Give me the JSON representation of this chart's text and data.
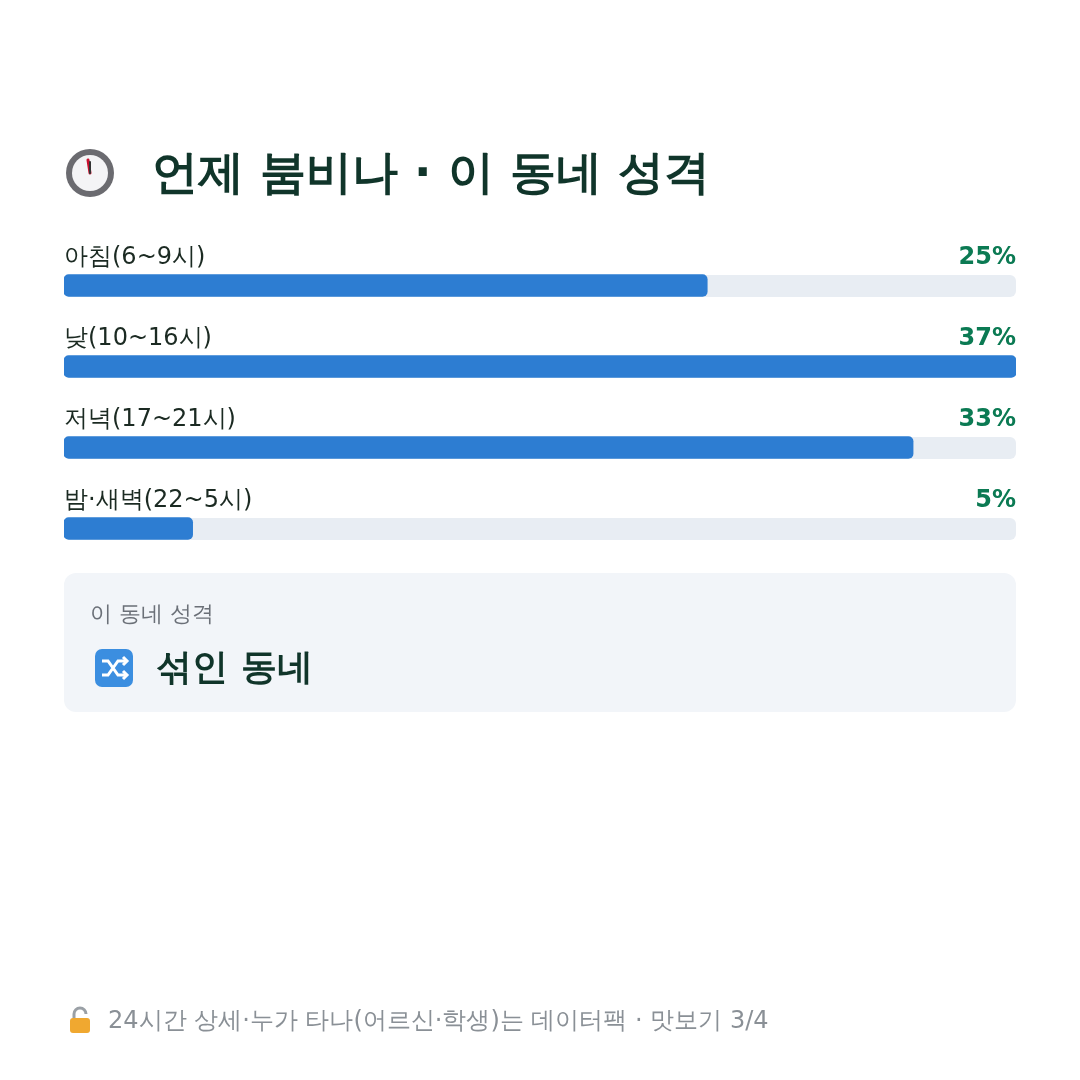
{
  "chart_data": {
    "type": "bar",
    "orientation": "horizontal",
    "title": "언제 붐비나 · 이 동네 성격",
    "categories": [
      "아침(6~9시)",
      "낮(10~16시)",
      "저녁(17~21시)",
      "밤·새벽(22~5시)"
    ],
    "values": [
      25,
      37,
      33,
      5
    ],
    "value_labels": [
      "25%",
      "37%",
      "33%",
      "5%"
    ],
    "color": "#2d7dd2",
    "xlim": [
      0,
      37
    ],
    "tick_labels": false,
    "annotations": [
      "이 동네 성격",
      "섞인 동네",
      "24시간 상세·누가 타나(어르신·학생)는 데이터팩 · 맛보기 3/4"
    ]
  }
}
